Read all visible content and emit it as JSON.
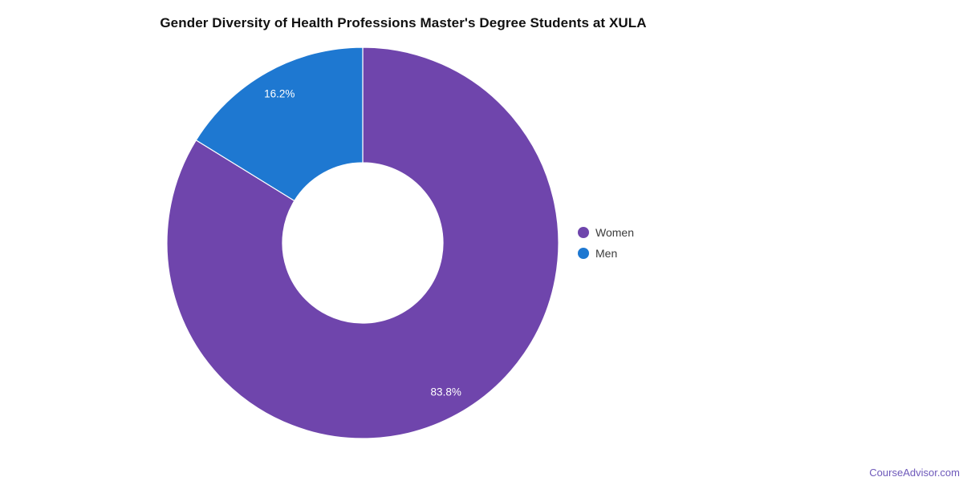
{
  "title": "Gender Diversity of Health Professions Master's Degree Students at XULA",
  "chart_data": {
    "type": "pie",
    "title": "Gender Diversity of Health Professions Master's Degree Students at XULA",
    "labels": [
      "Women",
      "Men"
    ],
    "values": [
      83.8,
      16.2
    ],
    "value_labels": [
      "83.8%",
      "16.2%"
    ],
    "colors": [
      "#6f45ac",
      "#1e78d1"
    ],
    "donut_hole_ratio": 0.41,
    "start_angle_deg": 0,
    "direction": "clockwise",
    "slice_label_color": "#ffffff",
    "slice_border_color": "#ffffff",
    "legend_position": "right"
  },
  "legend": {
    "items": [
      {
        "label": "Women",
        "color": "#6f45ac"
      },
      {
        "label": "Men",
        "color": "#1e78d1"
      }
    ]
  },
  "footer": {
    "text": "CourseAdvisor.com",
    "color": "#6e59ba"
  }
}
